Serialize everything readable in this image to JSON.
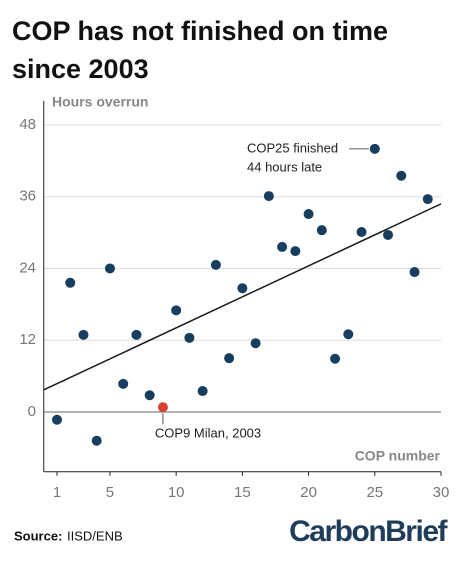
{
  "chart_data": {
    "type": "scatter",
    "title": "COP has not finished on time since 2003",
    "y_label": "Hours overrun",
    "x_label": "COP number",
    "x": [
      1,
      2,
      3,
      4,
      5,
      6,
      7,
      8,
      9,
      10,
      11,
      12,
      13,
      14,
      15,
      16,
      17,
      18,
      19,
      20,
      21,
      22,
      23,
      24,
      25,
      26,
      27,
      28,
      29
    ],
    "values": [
      -1.3,
      21.6,
      12.9,
      -4.8,
      24,
      4.7,
      12.9,
      2.8,
      0.8,
      17,
      12.4,
      3.5,
      24.6,
      9,
      20.7,
      11.5,
      36.1,
      27.6,
      26.9,
      33.1,
      30.4,
      8.9,
      13,
      30.1,
      44,
      29.6,
      39.5,
      23.4,
      35.6
    ],
    "color": "#173e5f",
    "highlight": {
      "index": 8,
      "color": "#d9412e"
    },
    "trend_line": {
      "x": [
        0,
        30
      ],
      "values": [
        3.7,
        34.8
      ],
      "color": "#1a1a1a"
    },
    "xlim": [
      0,
      30
    ],
    "ylim": [
      -10,
      52
    ],
    "xticks": [
      1,
      5,
      10,
      15,
      20,
      25,
      30
    ],
    "yticks": [
      0,
      12,
      24,
      36,
      48
    ],
    "grid": true,
    "annotations": [
      {
        "lines": [
          "COP25 finished",
          "44 hours late"
        ],
        "index": 24
      },
      {
        "lines": [
          "COP9 Milan, 2003"
        ],
        "index": 8
      }
    ],
    "source": {
      "label": "Source:",
      "text": "IISD/ENB"
    },
    "logo": "CarbonBrief"
  }
}
